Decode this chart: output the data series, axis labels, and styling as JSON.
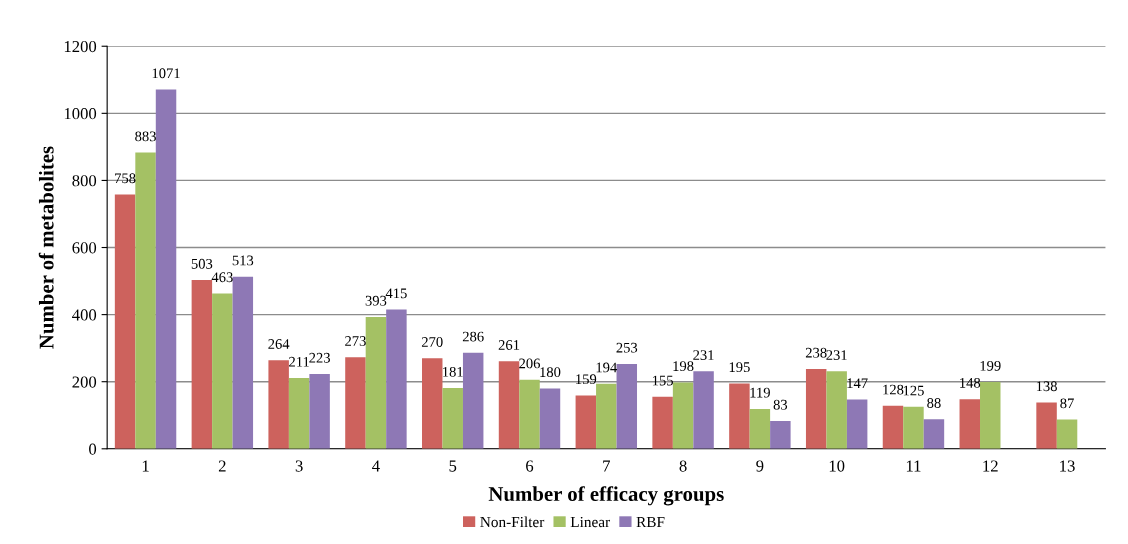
{
  "chart_data": {
    "type": "bar",
    "xlabel": "Number of efficacy groups",
    "ylabel": "Number of metabolites",
    "categories": [
      "1",
      "2",
      "3",
      "4",
      "5",
      "6",
      "7",
      "8",
      "9",
      "10",
      "11",
      "12",
      "13"
    ],
    "series": [
      {
        "name": "Non-Filter",
        "color": "#cd625d",
        "values": [
          758,
          503,
          264,
          273,
          270,
          261,
          159,
          155,
          195,
          238,
          128,
          148,
          138
        ]
      },
      {
        "name": "Linear",
        "color": "#a4c164",
        "values": [
          883,
          463,
          211,
          393,
          181,
          206,
          194,
          198,
          119,
          231,
          125,
          199,
          87
        ]
      },
      {
        "name": "RBF",
        "color": "#8e78b5",
        "values": [
          1071,
          513,
          223,
          415,
          286,
          180,
          253,
          231,
          83,
          147,
          88,
          null,
          null
        ]
      }
    ],
    "ylim": [
      0,
      1200
    ],
    "yticks": [
      0,
      200,
      400,
      600,
      800,
      1000,
      1200
    ],
    "grid": "y",
    "legend": "bottom",
    "data_labels": true
  }
}
